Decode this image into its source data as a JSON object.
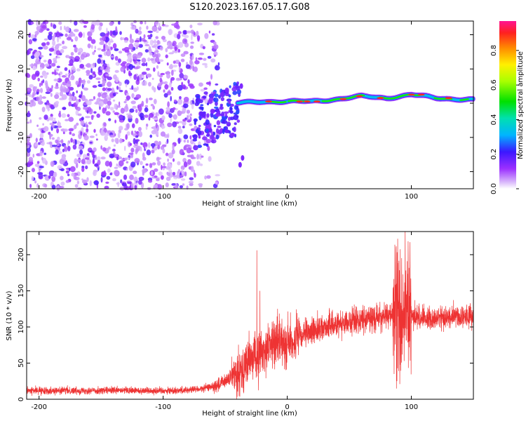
{
  "title": "S120.2023.167.05.17.G08",
  "colors": {
    "signal": "#ee3333",
    "axis": "#000000",
    "background": "#ffffff",
    "colormap": [
      "#ffffff",
      "#e6d2fb",
      "#c77dff",
      "#7a00e6",
      "#3b17ff",
      "#00c8ff",
      "#00e07a",
      "#66ff00",
      "#fff000",
      "#ff9a00",
      "#ff2a2a",
      "#ff1493"
    ]
  },
  "chart_data": [
    {
      "type": "heatmap",
      "xlabel": "Height of straight line (km)",
      "ylabel": "Frequency (Hz)",
      "xlim": [
        -210,
        150
      ],
      "ylim": [
        -25,
        24
      ],
      "xticks": [
        -200,
        -100,
        0,
        100
      ],
      "yticks": [
        -20,
        -10,
        0,
        10,
        20
      ],
      "colorbar": {
        "label": "Normalized spectral amplitude",
        "range": [
          0,
          0.97
        ],
        "ticks": [
          0.0,
          0.2,
          0.4,
          0.6,
          0.8
        ]
      },
      "ridge": [
        {
          "x": -40,
          "y": 0.0,
          "amp": 0.45
        },
        {
          "x": -20,
          "y": 0.5,
          "amp": 0.8
        },
        {
          "x": 0,
          "y": 0.5,
          "amp": 0.7
        },
        {
          "x": 20,
          "y": 0.5,
          "amp": 0.9
        },
        {
          "x": 40,
          "y": 1.2,
          "amp": 0.75
        },
        {
          "x": 60,
          "y": 2.0,
          "amp": 0.85
        },
        {
          "x": 80,
          "y": 1.5,
          "amp": 0.7
        },
        {
          "x": 100,
          "y": 2.5,
          "amp": 0.9
        },
        {
          "x": 120,
          "y": 1.5,
          "amp": 0.8
        },
        {
          "x": 150,
          "y": 1.0,
          "amp": 0.55
        }
      ]
    },
    {
      "type": "line",
      "xlabel": "Height of straight line (km)",
      "ylabel": "SNR (10 * v/v)",
      "xlim": [
        -210,
        150
      ],
      "ylim": [
        0,
        232
      ],
      "xticks": [
        -200,
        -100,
        0,
        100
      ],
      "yticks": [
        0,
        50,
        100,
        150,
        200
      ],
      "series": [
        {
          "x": [
            -210,
            -180,
            -150,
            -120,
            -90,
            -70,
            -55,
            -45,
            -40,
            -35,
            -30,
            -26,
            -24,
            -20,
            -15,
            -10,
            -5,
            0,
            10,
            20,
            30,
            40,
            60,
            80,
            90,
            95,
            100,
            110,
            120,
            135,
            150
          ],
          "values": [
            12,
            12,
            12,
            12,
            12,
            14,
            20,
            30,
            38,
            45,
            55,
            60,
            55,
            65,
            75,
            80,
            82,
            78,
            85,
            95,
            100,
            105,
            110,
            115,
            118,
            112,
            115,
            113,
            112,
            114,
            115
          ]
        }
      ],
      "spikes": [
        {
          "x": -24.5,
          "value": 206
        },
        {
          "x": -22,
          "value": 150
        },
        {
          "x": 95,
          "value": 232
        },
        {
          "x": 89,
          "value": 222
        }
      ]
    }
  ]
}
